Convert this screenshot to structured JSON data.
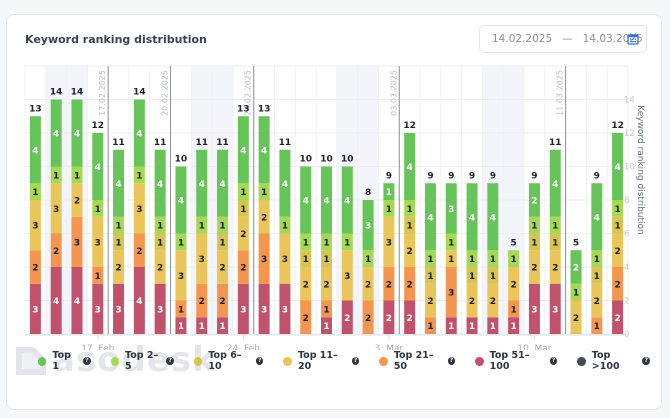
{
  "card": {
    "title": "Keyword ranking distribution",
    "date_from": "14.02.2025",
    "date_separator": "—",
    "date_to": "14.03.2025",
    "calendar_icon": "calendar-icon",
    "watermark": "asodesk"
  },
  "colors": {
    "top1": "#66c459",
    "top2_5": "#a5d955",
    "top6_10": "#d6c550",
    "top11_20": "#eac55a",
    "top21_50": "#f4964f",
    "top51_100": "#c0526b",
    "top100plus": "#424a5e",
    "accent": "#3a6fd8"
  },
  "chart_data": {
    "type": "bar",
    "stacked": true,
    "title": "Keyword ranking distribution",
    "ylabel": "Keyword ranking distribution",
    "ylim": [
      0,
      16
    ],
    "yticks": [
      0,
      2,
      4,
      6,
      8,
      10,
      12,
      14
    ],
    "y_axis_position": "right",
    "grid": true,
    "legend_position": "bottom",
    "categories": [
      "14.02",
      "15.02",
      "16.02",
      "17.02",
      "18.02",
      "19.02",
      "20.02",
      "21.02",
      "22.02",
      "23.02",
      "24.02",
      "25.02",
      "26.02",
      "27.02",
      "28.02",
      "01.03",
      "02.03",
      "03.03",
      "04.03",
      "05.03",
      "06.03",
      "07.03",
      "08.03",
      "09.03",
      "10.03",
      "11.03",
      "12.03",
      "13.03",
      "14.03"
    ],
    "xtick_labels": [
      {
        "index": 3,
        "label": "17. Feb"
      },
      {
        "index": 10,
        "label": "24. Feb"
      },
      {
        "index": 17,
        "label": "3. Mar"
      },
      {
        "index": 24,
        "label": "10. Mar"
      }
    ],
    "weekend_bands": [
      [
        1,
        2
      ],
      [
        8,
        9
      ],
      [
        15,
        16
      ],
      [
        22,
        23
      ]
    ],
    "annotations": [
      {
        "index": 3,
        "label": "17.02.2025"
      },
      {
        "index": 6,
        "label": "20.02.2025"
      },
      {
        "index": 10,
        "label": "24.02.2025"
      },
      {
        "index": 17,
        "label": "03.03.2025"
      },
      {
        "index": 25,
        "label": "11.03.2025"
      }
    ],
    "totals": [
      13,
      14,
      14,
      12,
      11,
      14,
      11,
      10,
      11,
      11,
      13,
      13,
      11,
      10,
      10,
      10,
      8,
      9,
      12,
      9,
      9,
      9,
      9,
      5,
      9,
      11,
      5,
      9,
      12
    ],
    "series": [
      {
        "name": "Top 1",
        "key": "top1",
        "label_color": "#ffffff",
        "values": [
          4,
          4,
          4,
          4,
          4,
          4,
          4,
          4,
          4,
          4,
          4,
          4,
          4,
          4,
          4,
          4,
          3,
          1,
          4,
          4,
          3,
          4,
          4,
          0,
          2,
          4,
          2,
          4,
          4
        ]
      },
      {
        "name": "Top 2-5",
        "key": "top2_5",
        "label_color": "#1d2030",
        "values": [
          1,
          1,
          1,
          1,
          1,
          1,
          1,
          1,
          1,
          1,
          1,
          1,
          1,
          1,
          1,
          1,
          1,
          1,
          1,
          1,
          1,
          1,
          1,
          1,
          1,
          1,
          1,
          1,
          1
        ]
      },
      {
        "name": "Top 6-10",
        "key": "top6_10",
        "label_color": "#1d2030",
        "values": [
          0,
          0,
          0,
          0,
          1,
          0,
          1,
          0,
          0,
          1,
          1,
          0,
          0,
          1,
          1,
          0,
          0,
          0,
          1,
          1,
          0,
          1,
          1,
          0,
          1,
          1,
          0,
          1,
          1
        ]
      },
      {
        "name": "Top 11-20",
        "key": "top11_20",
        "label_color": "#1d2030",
        "values": [
          3,
          3,
          2,
          3,
          2,
          3,
          2,
          3,
          3,
          2,
          2,
          2,
          3,
          2,
          2,
          3,
          2,
          3,
          2,
          2,
          1,
          2,
          2,
          2,
          2,
          2,
          2,
          2,
          2
        ]
      },
      {
        "name": "Top 21-50",
        "key": "top21_50",
        "label_color": "#1d2030",
        "values": [
          2,
          2,
          3,
          1,
          0,
          2,
          0,
          1,
          2,
          2,
          2,
          3,
          0,
          2,
          1,
          0,
          2,
          2,
          2,
          1,
          3,
          0,
          0,
          1,
          0,
          0,
          0,
          1,
          2
        ]
      },
      {
        "name": "Top 51-100",
        "key": "top51_100",
        "label_color": "#ffffff",
        "values": [
          3,
          4,
          4,
          3,
          3,
          4,
          3,
          1,
          1,
          1,
          3,
          3,
          3,
          0,
          1,
          2,
          0,
          2,
          2,
          0,
          1,
          1,
          1,
          1,
          3,
          3,
          0,
          0,
          2
        ]
      },
      {
        "name": "Top >100",
        "key": "top100plus",
        "label_color": "#ffffff",
        "values": [
          0,
          0,
          0,
          0,
          0,
          0,
          0,
          0,
          0,
          0,
          0,
          0,
          0,
          0,
          0,
          0,
          0,
          0,
          0,
          0,
          0,
          0,
          0,
          0,
          0,
          0,
          0,
          0,
          0
        ]
      }
    ]
  },
  "legend": [
    {
      "label": "Top 1",
      "key": "top1",
      "help_icon": "question-circle-icon"
    },
    {
      "label": "Top 2–5",
      "key": "top2_5",
      "help_icon": "question-circle-icon"
    },
    {
      "label": "Top 6–10",
      "key": "top6_10",
      "help_icon": "question-circle-icon"
    },
    {
      "label": "Top 11–20",
      "key": "top11_20",
      "help_icon": "question-circle-icon"
    },
    {
      "label": "Top 21–50",
      "key": "top21_50",
      "help_icon": "question-circle-icon"
    },
    {
      "label": "Top 51–100",
      "key": "top51_100",
      "help_icon": "question-circle-icon"
    },
    {
      "label": "Top >100",
      "key": "top100plus",
      "help_icon": "question-circle-icon"
    }
  ],
  "help_glyph": "?"
}
